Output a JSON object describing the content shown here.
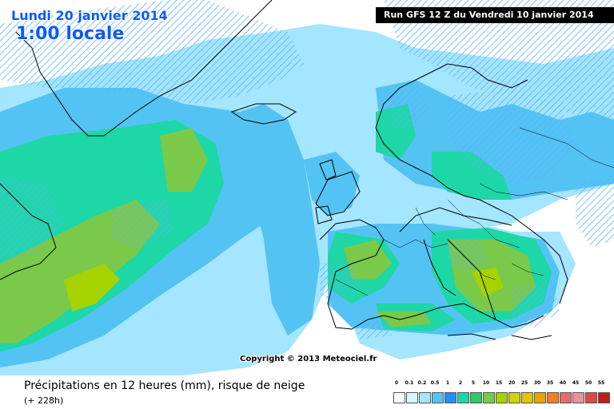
{
  "header": {
    "date": "Lundi 20 janvier 2014",
    "time": "1:00 locale",
    "run": "Run GFS 12 Z du Vendredi 10 janvier 2014"
  },
  "copyright": "Copyright © 2013 Meteociel.fr",
  "caption": {
    "title": "Précipitations en 12 heures (mm), risque de neige",
    "subtitle": "(+ 228h)"
  },
  "colors": {
    "ocean": "#ffffff",
    "light_blue": "#a4e5ff",
    "mid_blue": "#53c3f3",
    "teal": "#1ed7a6",
    "green": "#2ec965",
    "olive_green": "#7ac94b",
    "hatch": "#5ab0ff",
    "coast": "#000000",
    "title_blue": "#0a5aff"
  },
  "legend": {
    "labels": [
      "0",
      "0.1",
      "0.2",
      "0.5",
      "1",
      "2",
      "5",
      "10",
      "15",
      "20",
      "25",
      "30",
      "35",
      "40",
      "45",
      "50",
      "55"
    ],
    "colors": [
      "#ffffff",
      "#d4f6ff",
      "#a4e5ff",
      "#53c3f3",
      "#1e90ff",
      "#1ed7a6",
      "#2ec965",
      "#7ac94b",
      "#a6d200",
      "#ccd400",
      "#e5c500",
      "#eea200",
      "#f07e2a",
      "#e86a6a",
      "#e89494",
      "#dc4a4a",
      "#c41c1c"
    ]
  }
}
